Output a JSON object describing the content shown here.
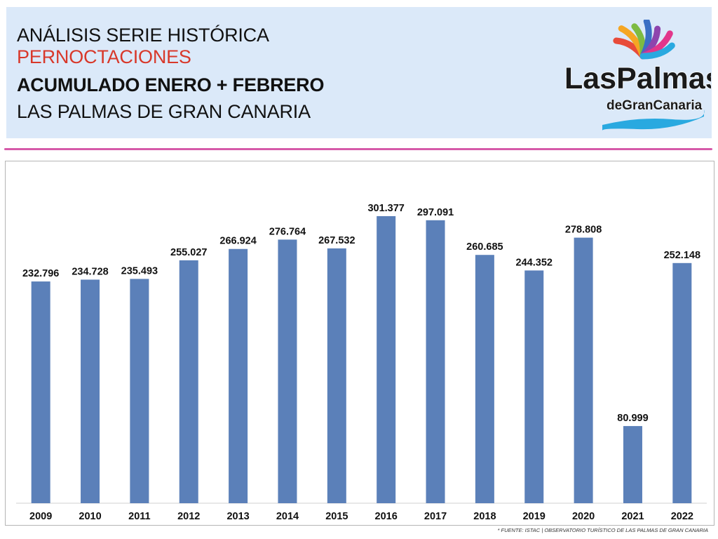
{
  "header": {
    "line1": "ANÁLISIS SERIE HISTÓRICA",
    "line2": "PERNOCTACIONES",
    "line3": "ACUMULADO ENERO + FEBRERO",
    "line4": "LAS PALMAS DE GRAN CANARIA"
  },
  "logo": {
    "text_main": "LasPalmas",
    "text_sub": "deGranCanaria",
    "colors": [
      "#e84b3a",
      "#f5a623",
      "#7dbb42",
      "#3a6fc4",
      "#8e44ad",
      "#e2368b",
      "#29a9e0"
    ]
  },
  "colors": {
    "bar": "#5b80b9",
    "divider": "#d65aa9",
    "header_bg": "#dbe9f9",
    "accent_red": "#d8382a"
  },
  "source": "* FUENTE: ISTAC | OBSERVATORIO TURÍSTICO DE LAS PALMAS DE GRAN CANARIA",
  "chart_data": {
    "type": "bar",
    "title": "",
    "xlabel": "",
    "ylabel": "",
    "ylim": [
      0,
      350000
    ],
    "grid": false,
    "categories": [
      "2009",
      "2010",
      "2011",
      "2012",
      "2013",
      "2014",
      "2015",
      "2016",
      "2017",
      "2018",
      "2019",
      "2020",
      "2021",
      "2022"
    ],
    "values": [
      232796,
      234728,
      235493,
      255027,
      266924,
      276764,
      267532,
      301377,
      297091,
      260685,
      244352,
      278808,
      80999,
      252148
    ],
    "labels": [
      "232.796",
      "234.728",
      "235.493",
      "255.027",
      "266.924",
      "276.764",
      "267.532",
      "301.377",
      "297.091",
      "260.685",
      "244.352",
      "278.808",
      "80.999",
      "252.148"
    ]
  }
}
